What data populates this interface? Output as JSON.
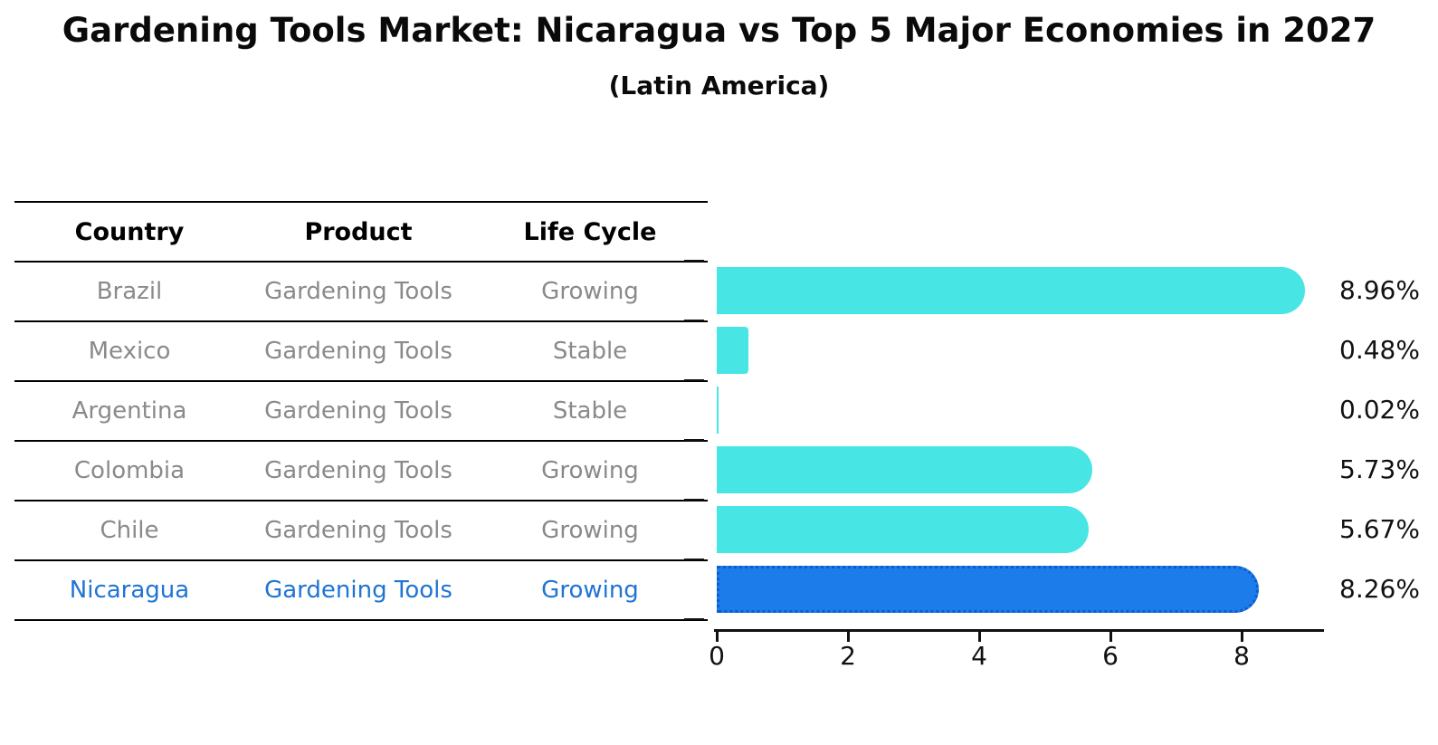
{
  "title": "Gardening Tools Market: Nicaragua vs Top 5 Major Economies in 2027",
  "subtitle": "(Latin America)",
  "table": {
    "headers": [
      "Country",
      "Product",
      "Life Cycle"
    ],
    "rows": [
      {
        "country": "Brazil",
        "product": "Gardening Tools",
        "life_cycle": "Growing",
        "highlight": false
      },
      {
        "country": "Mexico",
        "product": "Gardening Tools",
        "life_cycle": "Stable",
        "highlight": false
      },
      {
        "country": "Argentina",
        "product": "Gardening Tools",
        "life_cycle": "Stable",
        "highlight": false
      },
      {
        "country": "Colombia",
        "product": "Gardening Tools",
        "life_cycle": "Growing",
        "highlight": false
      },
      {
        "country": "Chile",
        "product": "Gardening Tools",
        "life_cycle": "Growing",
        "highlight": false
      },
      {
        "country": "Nicaragua",
        "product": "Gardening Tools",
        "life_cycle": "Growing",
        "highlight": true
      }
    ]
  },
  "chart_data": {
    "type": "bar",
    "orientation": "horizontal",
    "categories": [
      "Brazil",
      "Mexico",
      "Argentina",
      "Colombia",
      "Chile",
      "Nicaragua"
    ],
    "values": [
      8.96,
      0.48,
      0.02,
      5.73,
      5.67,
      8.26
    ],
    "value_labels": [
      "8.96%",
      "0.48%",
      "0.02%",
      "5.73%",
      "5.67%",
      "8.26%"
    ],
    "x_ticks": [
      "0",
      "2",
      "4",
      "6",
      "8"
    ],
    "xlim": [
      0,
      9.3
    ],
    "grid": false,
    "legend": false,
    "highlight_index": 5,
    "colors": {
      "bar": "#48e5e5",
      "highlight_bar": "#1c7ce9",
      "highlight_edge": "#0e5ccc",
      "highlight_text": "#1f74d4",
      "axis": "#111111",
      "table_text": "#8a8a8a",
      "header_text": "#000000"
    }
  }
}
